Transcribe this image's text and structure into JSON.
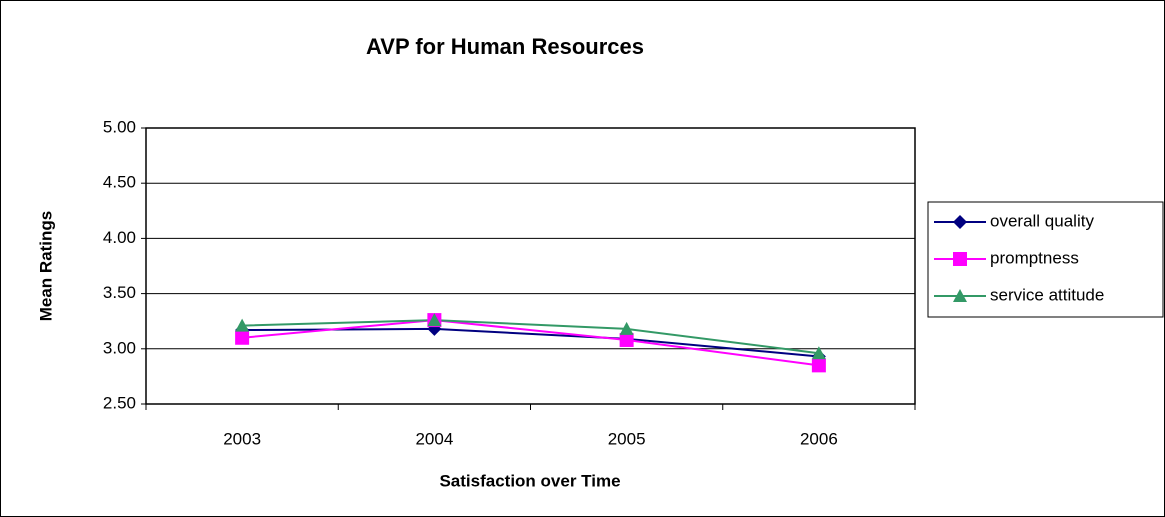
{
  "chart_data": {
    "type": "line",
    "title": "AVP for Human Resources",
    "x_label": "Satisfaction over Time",
    "y_label": "Mean Ratings",
    "categories": [
      "2003",
      "2004",
      "2005",
      "2006"
    ],
    "series": [
      {
        "name": "overall quality",
        "color": "#000080",
        "marker": "diamond",
        "values": [
          3.17,
          3.18,
          3.09,
          2.93
        ]
      },
      {
        "name": "promptness",
        "color": "#ff00ff",
        "marker": "square",
        "values": [
          3.1,
          3.26,
          3.08,
          2.85
        ]
      },
      {
        "name": "service attitude",
        "color": "#339966",
        "marker": "triangle",
        "values": [
          3.21,
          3.26,
          3.18,
          2.96
        ]
      }
    ],
    "ylim": [
      2.5,
      5
    ],
    "yticks": [
      {
        "value": 2.5,
        "label": "2.50"
      },
      {
        "value": 3,
        "label": "3.00"
      },
      {
        "value": 3.5,
        "label": "3.50"
      },
      {
        "value": 4,
        "label": "4.00"
      },
      {
        "value": 4.5,
        "label": "4.50"
      },
      {
        "value": 5,
        "label": "5.00"
      }
    ],
    "grid": true,
    "legend": "right"
  }
}
